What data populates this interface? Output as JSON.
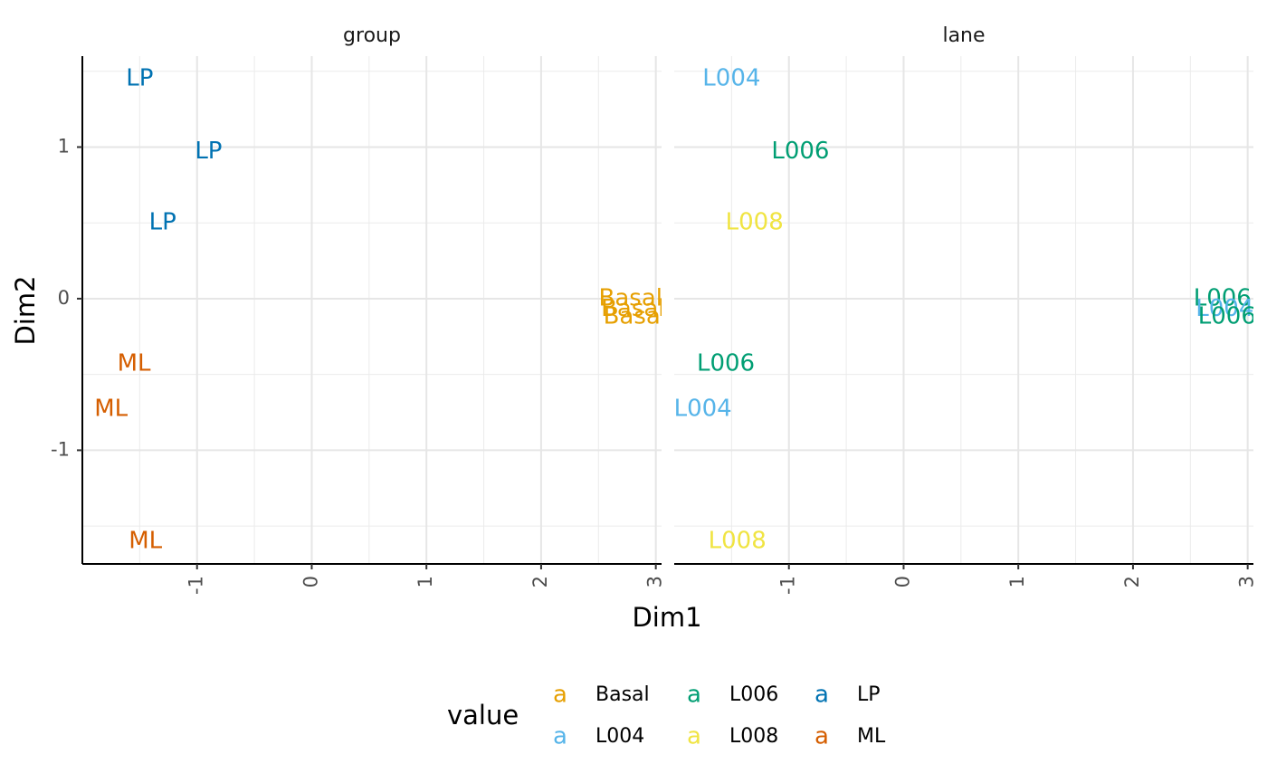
{
  "chart_data": {
    "type": "scatter",
    "xlabel": "Dim1",
    "ylabel": "Dim2",
    "xlim": [
      -2.0,
      3.05
    ],
    "ylim": [
      -1.75,
      1.6
    ],
    "x_ticks": [
      -1,
      0,
      1,
      2,
      3
    ],
    "x_tick_labels": [
      "-1",
      "0",
      "1",
      "2",
      "3"
    ],
    "y_ticks": [
      -1,
      0,
      1
    ],
    "y_tick_labels": [
      "-1",
      "0",
      "1"
    ],
    "panels": [
      {
        "title": "group",
        "points": [
          {
            "x": -1.5,
            "y": 1.45,
            "label": "LP"
          },
          {
            "x": -0.9,
            "y": 0.97,
            "label": "LP"
          },
          {
            "x": -1.3,
            "y": 0.5,
            "label": "LP"
          },
          {
            "x": 2.78,
            "y": 0.0,
            "label": "Basal"
          },
          {
            "x": 2.8,
            "y": -0.07,
            "label": "Basal"
          },
          {
            "x": 2.82,
            "y": -0.12,
            "label": "Basal"
          },
          {
            "x": -1.55,
            "y": -0.43,
            "label": "ML"
          },
          {
            "x": -1.75,
            "y": -0.73,
            "label": "ML"
          },
          {
            "x": -1.45,
            "y": -1.6,
            "label": "ML"
          }
        ]
      },
      {
        "title": "lane",
        "points": [
          {
            "x": -1.5,
            "y": 1.45,
            "label": "L004"
          },
          {
            "x": -0.9,
            "y": 0.97,
            "label": "L006"
          },
          {
            "x": -1.3,
            "y": 0.5,
            "label": "L008"
          },
          {
            "x": 2.78,
            "y": 0.0,
            "label": "L006"
          },
          {
            "x": 2.8,
            "y": -0.07,
            "label": "L004"
          },
          {
            "x": 2.82,
            "y": -0.12,
            "label": "L006"
          },
          {
            "x": -1.55,
            "y": -0.43,
            "label": "L006"
          },
          {
            "x": -1.75,
            "y": -0.73,
            "label": "L004"
          },
          {
            "x": -1.45,
            "y": -1.6,
            "label": "L008"
          }
        ]
      }
    ],
    "legend": {
      "title": "value",
      "position": "bottom",
      "key_glyph": "a",
      "entries": [
        {
          "label": "Basal",
          "color": "#E69F00"
        },
        {
          "label": "L004",
          "color": "#56B4E9"
        },
        {
          "label": "L006",
          "color": "#009E73"
        },
        {
          "label": "L008",
          "color": "#F0E442"
        },
        {
          "label": "LP",
          "color": "#0072B2"
        },
        {
          "label": "ML",
          "color": "#D55E00"
        }
      ]
    }
  }
}
